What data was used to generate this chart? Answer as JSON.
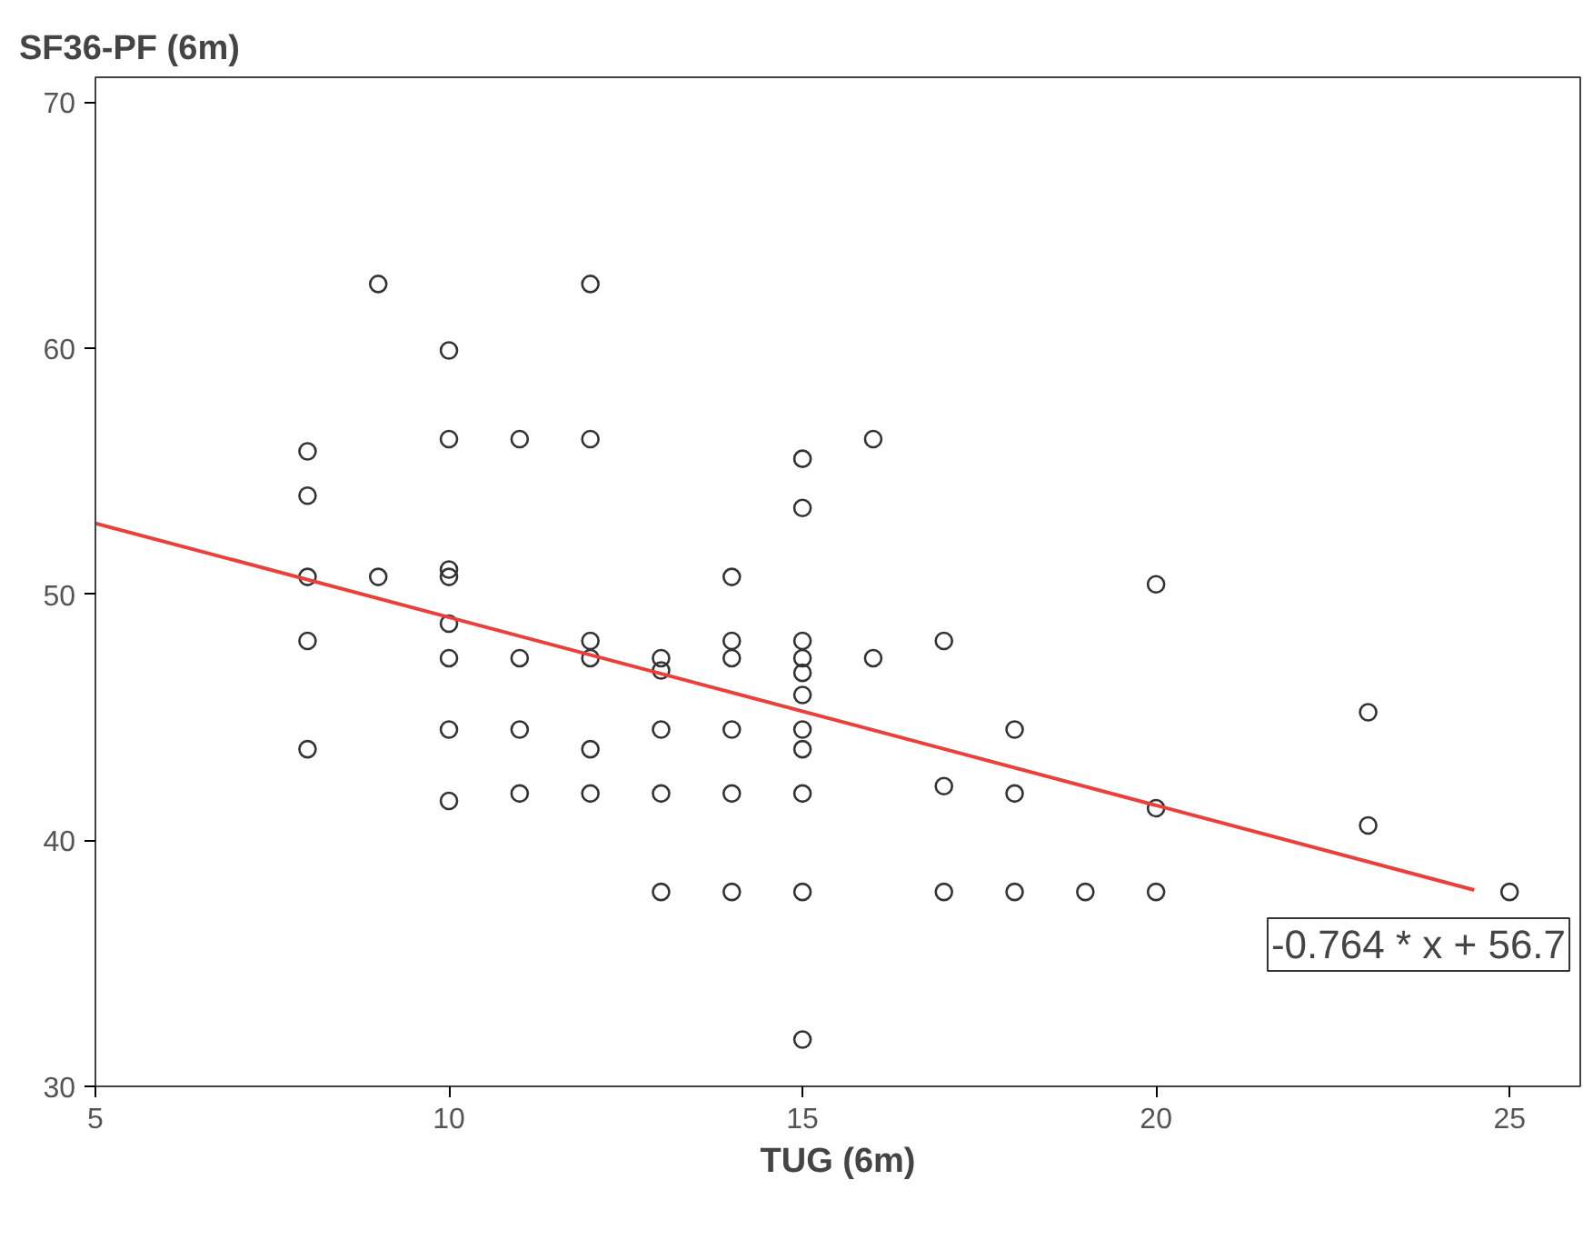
{
  "chart_data": {
    "type": "scatter",
    "xlabel": "TUG (6m)",
    "ylabel": "SF36-PF (6m)",
    "xlim": [
      5,
      26
    ],
    "ylim": [
      30,
      71
    ],
    "xticks": [
      5,
      10,
      15,
      20,
      25
    ],
    "yticks": [
      30,
      40,
      50,
      60,
      70
    ],
    "grid": false,
    "series": [
      {
        "marker": "circle",
        "color": "#333333",
        "x": [
          8,
          8,
          8,
          8,
          8,
          9,
          9,
          10,
          10,
          10,
          10,
          10,
          10,
          10,
          10,
          11,
          11,
          11,
          11,
          12,
          12,
          12,
          12,
          12,
          12,
          13,
          13,
          13,
          13,
          13,
          14,
          14,
          14,
          14,
          14,
          14,
          15,
          15,
          15,
          15,
          15,
          15,
          15,
          15,
          15,
          15,
          15,
          16,
          16,
          17,
          17,
          17,
          18,
          18,
          18,
          19,
          20,
          20,
          20,
          23,
          23,
          25
        ],
        "values": [
          55.8,
          54.0,
          50.7,
          48.1,
          43.7,
          62.6,
          50.7,
          59.9,
          56.3,
          51.0,
          50.7,
          48.8,
          47.4,
          44.5,
          41.6,
          56.3,
          47.4,
          44.5,
          41.9,
          62.6,
          56.3,
          48.1,
          47.4,
          43.7,
          41.9,
          47.4,
          46.9,
          44.5,
          41.9,
          37.9,
          50.7,
          48.1,
          47.4,
          44.5,
          41.9,
          37.9,
          55.5,
          53.5,
          48.1,
          47.4,
          46.8,
          45.9,
          44.5,
          43.7,
          41.9,
          37.9,
          31.9,
          56.3,
          47.4,
          48.1,
          42.2,
          37.9,
          44.5,
          41.9,
          37.9,
          37.9,
          50.4,
          41.3,
          37.9,
          45.2,
          40.6,
          37.9
        ]
      },
      {
        "type": "line",
        "color": "#e8413c",
        "x": [
          5,
          24.5
        ],
        "values": [
          52.88,
          37.98
        ]
      }
    ],
    "annotations": [
      "-0.764 * x + 56.7"
    ]
  }
}
